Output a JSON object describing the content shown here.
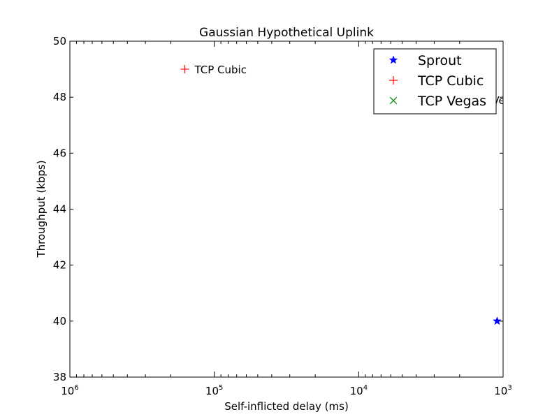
{
  "chart_data": {
    "type": "scatter",
    "title": "Gaussian Hypothetical Uplink",
    "xlabel": "Self-inflicted delay (ms)",
    "ylabel": "Throughput (kbps)",
    "x_scale": "log",
    "x_inverted": true,
    "xlim": [
      1000000,
      1000
    ],
    "ylim": [
      38,
      50
    ],
    "x_ticks": [
      {
        "value": 1000000,
        "base": "10",
        "exp": "6"
      },
      {
        "value": 100000,
        "base": "10",
        "exp": "5"
      },
      {
        "value": 10000,
        "base": "10",
        "exp": "4"
      },
      {
        "value": 1000,
        "base": "10",
        "exp": "3"
      }
    ],
    "y_ticks": [
      38,
      40,
      42,
      44,
      46,
      48,
      50
    ],
    "grid": false,
    "legend": {
      "position": "top-right",
      "entries": [
        {
          "label": "Sprout",
          "marker": "star",
          "color": "#0000ff"
        },
        {
          "label": "TCP Cubic",
          "marker": "plus",
          "color": "#ff0000"
        },
        {
          "label": "TCP Vegas",
          "marker": "x",
          "color": "#008000"
        }
      ]
    },
    "series": [
      {
        "name": "Sprout",
        "marker": "star",
        "color": "#0000ff",
        "points": [
          {
            "x": 1100,
            "y": 40,
            "label": "Sprout"
          }
        ]
      },
      {
        "name": "TCP Cubic",
        "marker": "plus",
        "color": "#ff0000",
        "points": [
          {
            "x": 160000,
            "y": 49,
            "label": "TCP Cubic"
          }
        ]
      },
      {
        "name": "TCP Vegas",
        "marker": "x",
        "color": "#008000",
        "points": [
          {
            "x": 2000,
            "y": 47.9,
            "label": "TCP Vegas"
          }
        ]
      }
    ]
  }
}
